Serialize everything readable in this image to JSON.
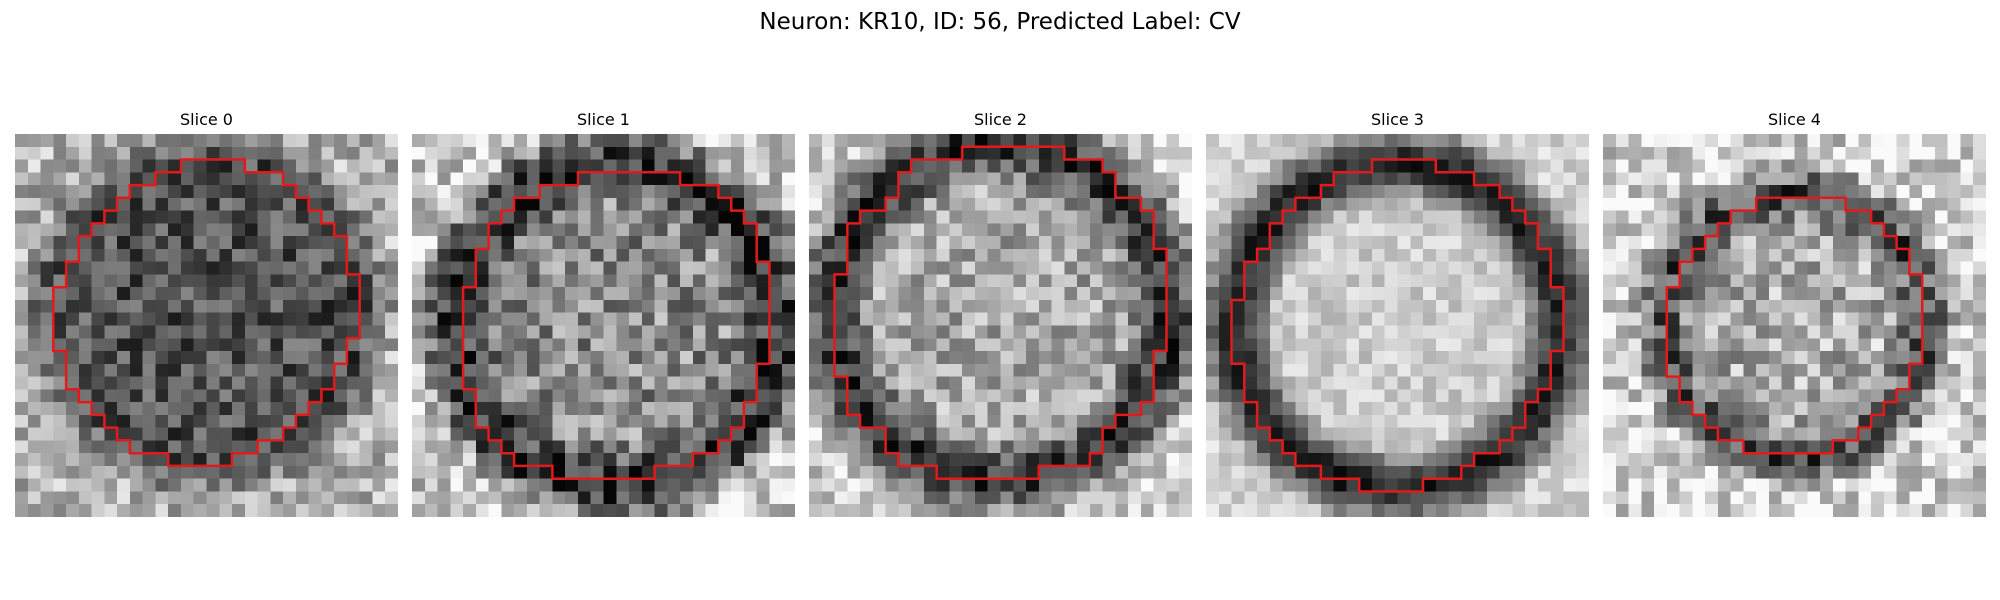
{
  "figure": {
    "title": "Neuron: KR10, ID: 56, Predicted Label: CV"
  },
  "panels": [
    {
      "title": "Slice 0",
      "style": "dark-interior",
      "seed": 11
    },
    {
      "title": "Slice 1",
      "style": "dark-ring",
      "seed": 23
    },
    {
      "title": "Slice 2",
      "style": "dark-ring-bright-core",
      "seed": 37
    },
    {
      "title": "Slice 3",
      "style": "smooth-bright-core",
      "seed": 41
    },
    {
      "title": "Slice 4",
      "style": "small-ring",
      "seed": 59
    }
  ],
  "colors": {
    "contour": "#e31a1c",
    "background": "#ffffff"
  }
}
